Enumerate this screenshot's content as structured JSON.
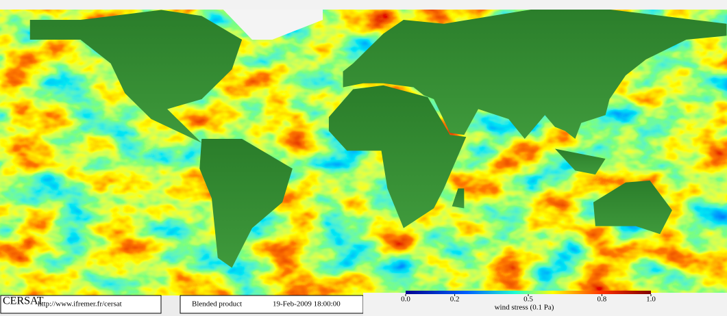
{
  "title_box": {
    "org": "CERSAT",
    "url": "http://www.ifremer.fr/cersat"
  },
  "product_box": {
    "product": "Blended product",
    "date": "19-Feb-2009 18:00:00"
  },
  "colorbar": {
    "label": "wind stress (0.1 Pa)",
    "range": [
      0,
      1
    ],
    "ticks": [
      {
        "value": 0,
        "label": "0.0"
      },
      0.2,
      0.5,
      0.8,
      {
        "value": 1,
        "label": "1.0"
      }
    ]
  }
}
